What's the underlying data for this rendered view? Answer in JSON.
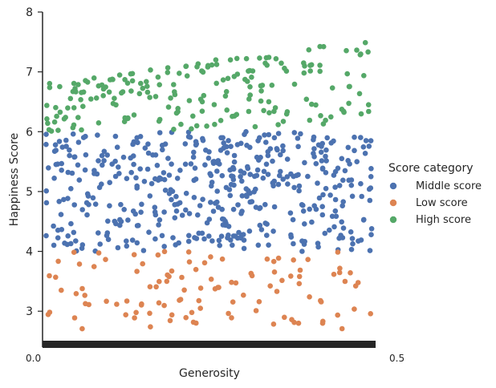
{
  "chart_data": {
    "type": "scatter",
    "title": "",
    "xlabel": "Generosity",
    "ylabel": "Happiness Score",
    "ylim": [
      2.4,
      8.0
    ],
    "yticks": [
      3,
      4,
      5,
      6,
      7,
      8
    ],
    "x_tick_labels": {
      "first": "0.0",
      "last": "0.5"
    },
    "legend": {
      "title": "Score category",
      "placement": "right"
    },
    "series": [
      {
        "name": "Middle score",
        "color": "#4c72b0",
        "y_range": [
          4.0,
          6.0
        ],
        "count": 470,
        "trend": "flat"
      },
      {
        "name": "Low score",
        "color": "#dd8452",
        "y_range": [
          2.7,
          4.0
        ],
        "count": 110,
        "trend": "flat"
      },
      {
        "name": "High score",
        "color": "#55a868",
        "y_range": [
          6.0,
          7.8
        ],
        "count": 200,
        "trend": "rising from ~6.0-6.8 at low generosity to ~6.8-7.6 at high generosity"
      }
    ]
  }
}
